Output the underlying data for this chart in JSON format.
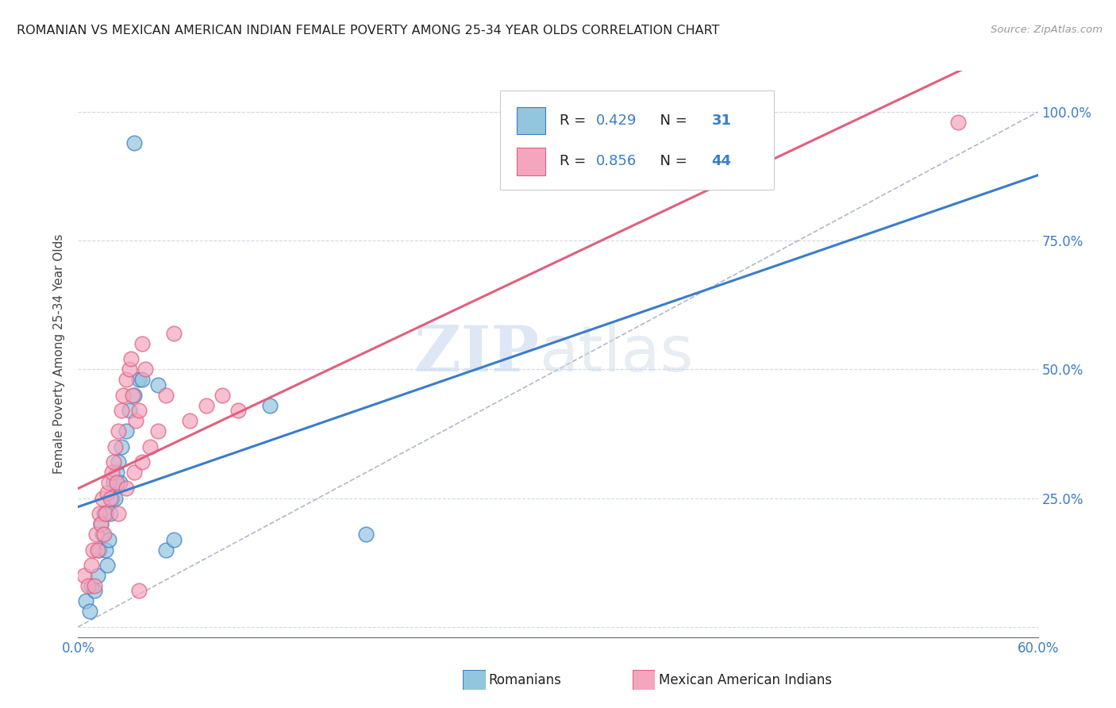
{
  "title": "ROMANIAN VS MEXICAN AMERICAN INDIAN FEMALE POVERTY AMONG 25-34 YEAR OLDS CORRELATION CHART",
  "source": "Source: ZipAtlas.com",
  "ylabel": "Female Poverty Among 25-34 Year Olds",
  "yticks": [
    0.0,
    0.25,
    0.5,
    0.75,
    1.0
  ],
  "ytick_labels": [
    "",
    "25.0%",
    "50.0%",
    "75.0%",
    "100.0%"
  ],
  "xmin": 0.0,
  "xmax": 0.6,
  "ymin": -0.02,
  "ymax": 1.08,
  "r_romanian": 0.429,
  "n_romanian": 31,
  "r_mexican": 0.856,
  "n_mexican": 44,
  "blue_color": "#92c5de",
  "pink_color": "#f4a6bf",
  "blue_line": "#3a7dc9",
  "pink_line": "#e0607e",
  "legend_label_romanian": "Romanians",
  "legend_label_mexican": "Mexican American Indians",
  "watermark_zip": "ZIP",
  "watermark_atlas": "atlas",
  "blue_scatter_x": [
    0.005,
    0.007,
    0.008,
    0.01,
    0.012,
    0.013,
    0.014,
    0.015,
    0.016,
    0.017,
    0.018,
    0.019,
    0.02,
    0.021,
    0.022,
    0.023,
    0.024,
    0.025,
    0.026,
    0.027,
    0.03,
    0.032,
    0.035,
    0.038,
    0.04,
    0.05,
    0.055,
    0.06,
    0.12,
    0.18,
    0.035
  ],
  "blue_scatter_y": [
    0.05,
    0.03,
    0.08,
    0.07,
    0.1,
    0.15,
    0.2,
    0.18,
    0.22,
    0.15,
    0.12,
    0.17,
    0.22,
    0.25,
    0.28,
    0.25,
    0.3,
    0.32,
    0.28,
    0.35,
    0.38,
    0.42,
    0.45,
    0.48,
    0.48,
    0.47,
    0.15,
    0.17,
    0.43,
    0.18,
    0.94
  ],
  "pink_scatter_x": [
    0.004,
    0.006,
    0.008,
    0.009,
    0.01,
    0.011,
    0.012,
    0.013,
    0.014,
    0.015,
    0.016,
    0.017,
    0.018,
    0.019,
    0.02,
    0.021,
    0.022,
    0.023,
    0.024,
    0.025,
    0.027,
    0.028,
    0.03,
    0.032,
    0.033,
    0.034,
    0.036,
    0.038,
    0.04,
    0.042,
    0.045,
    0.05,
    0.055,
    0.06,
    0.07,
    0.08,
    0.09,
    0.1,
    0.035,
    0.025,
    0.03,
    0.04,
    0.55,
    0.038
  ],
  "pink_scatter_y": [
    0.1,
    0.08,
    0.12,
    0.15,
    0.08,
    0.18,
    0.15,
    0.22,
    0.2,
    0.25,
    0.18,
    0.22,
    0.26,
    0.28,
    0.25,
    0.3,
    0.32,
    0.35,
    0.28,
    0.38,
    0.42,
    0.45,
    0.48,
    0.5,
    0.52,
    0.45,
    0.4,
    0.42,
    0.55,
    0.5,
    0.35,
    0.38,
    0.45,
    0.57,
    0.4,
    0.43,
    0.45,
    0.42,
    0.3,
    0.22,
    0.27,
    0.32,
    0.98,
    0.07
  ]
}
